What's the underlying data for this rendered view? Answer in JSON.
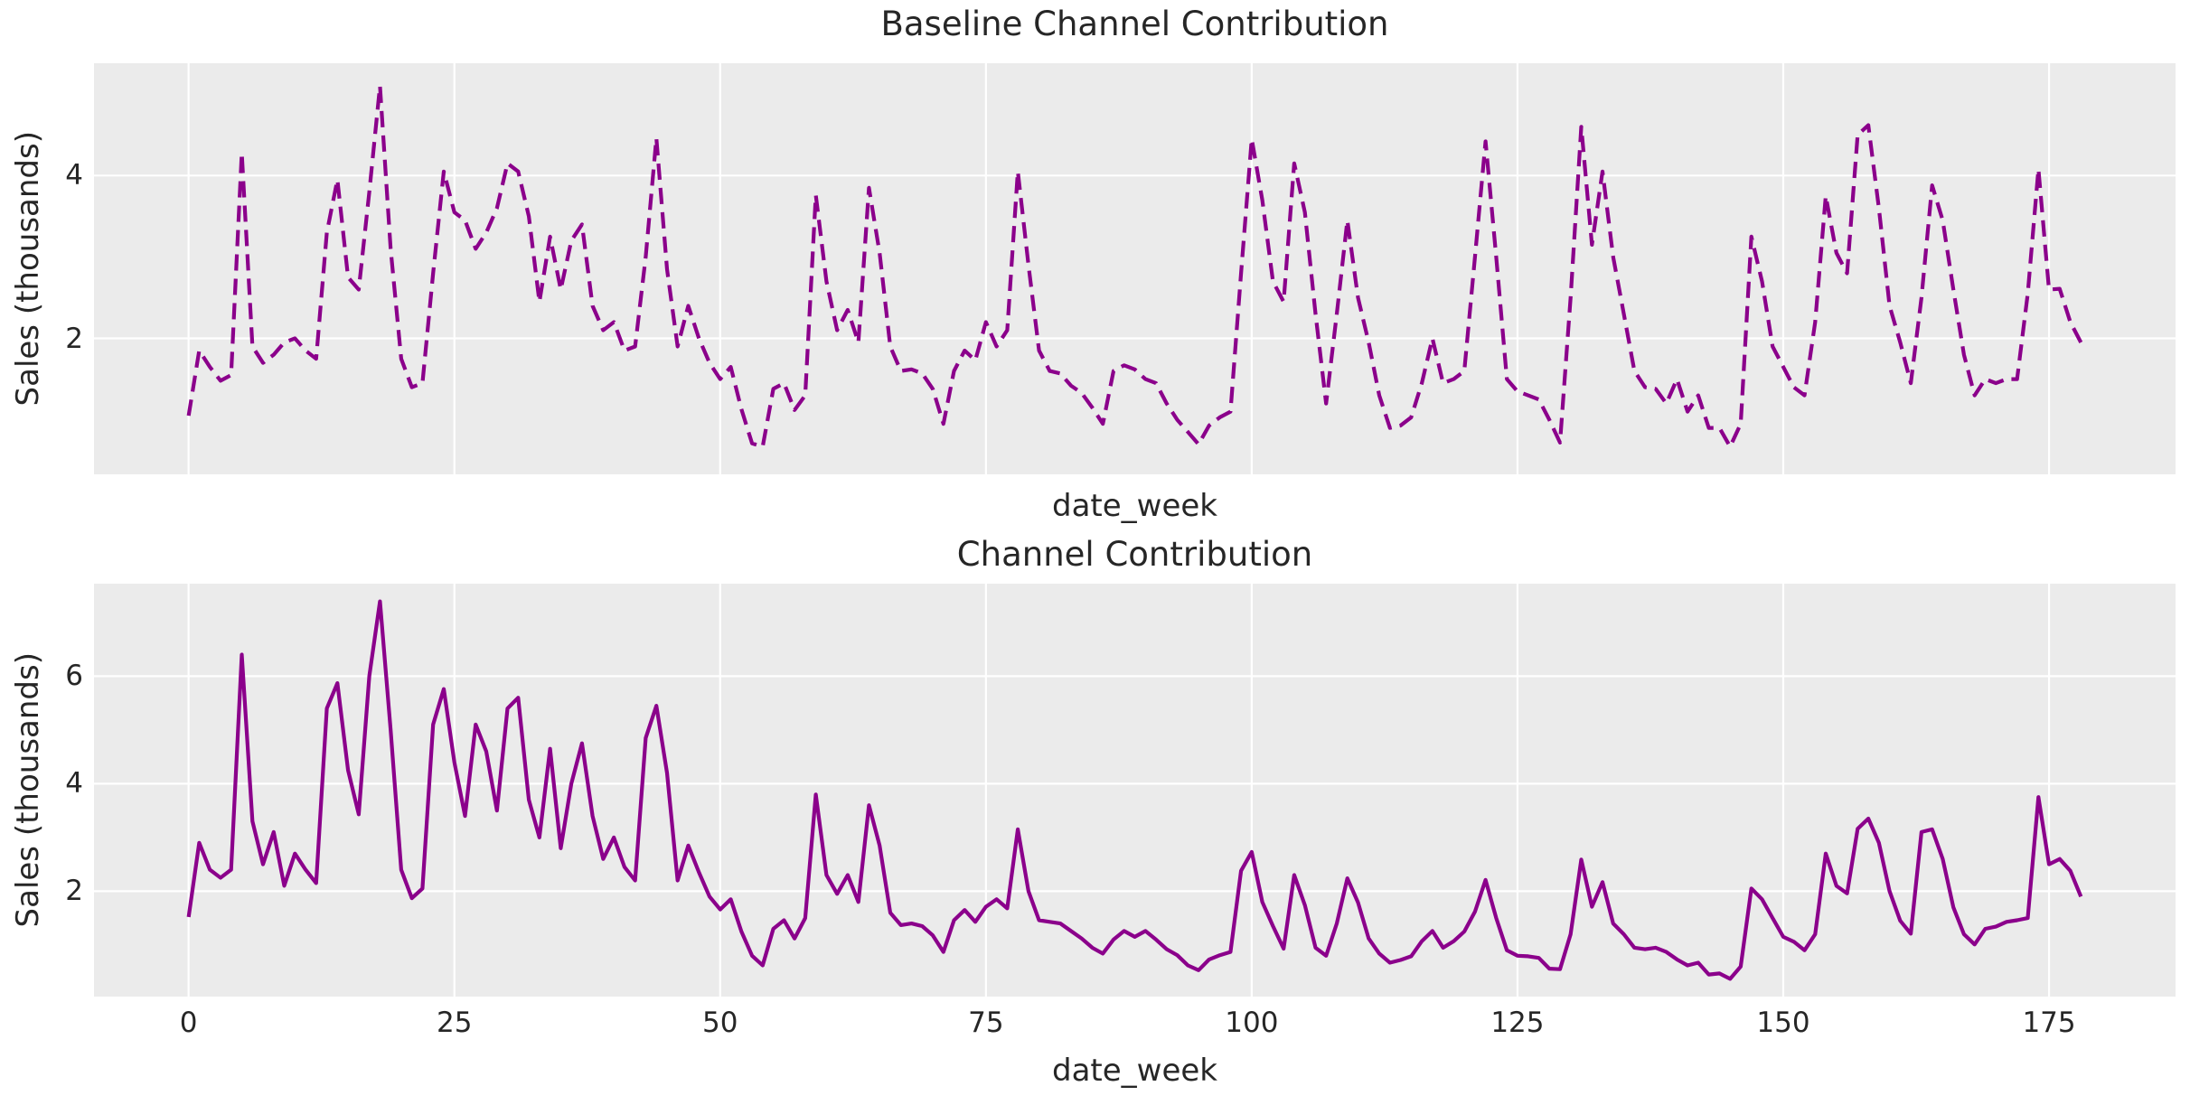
{
  "figure": {
    "background": "#ffffff",
    "plot_background": "#ebebeb",
    "grid_color": "#ffffff",
    "text_color": "#262626",
    "accent_line_color": "#8B008B"
  },
  "chart_data": [
    {
      "type": "line",
      "title": "Baseline Channel Contribution",
      "xlabel": "date_week",
      "ylabel": "Sales (thousands)",
      "line_style": "dashed",
      "color": "#8B008B",
      "x_description": "week index 0..178 (x = array index)",
      "xlim": [
        -8.9,
        186.9
      ],
      "ylim": [
        0.33,
        5.38
      ],
      "xticks": [
        0,
        25,
        50,
        75,
        100,
        125,
        150,
        175
      ],
      "xtick_labels_visible": false,
      "yticks": [
        2,
        4
      ],
      "grid": true,
      "legend": "none",
      "values": [
        1.05,
        1.85,
        1.65,
        1.48,
        1.55,
        4.28,
        1.9,
        1.7,
        1.8,
        1.95,
        2.0,
        1.85,
        1.75,
        3.3,
        3.95,
        2.75,
        2.6,
        3.8,
        5.1,
        3.1,
        1.75,
        1.4,
        1.45,
        2.8,
        4.05,
        3.55,
        3.45,
        3.1,
        3.3,
        3.6,
        4.15,
        4.05,
        3.5,
        2.45,
        3.25,
        2.6,
        3.2,
        3.4,
        2.4,
        2.1,
        2.2,
        1.85,
        1.9,
        3.0,
        4.46,
        2.85,
        1.9,
        2.4,
        2.0,
        1.7,
        1.5,
        1.65,
        1.13,
        0.71,
        0.67,
        1.38,
        1.45,
        1.12,
        1.3,
        3.76,
        2.7,
        2.1,
        2.35,
        1.95,
        3.85,
        3.05,
        1.9,
        1.6,
        1.62,
        1.57,
        1.38,
        0.95,
        1.6,
        1.85,
        1.73,
        2.2,
        1.9,
        2.1,
        4.05,
        2.9,
        1.85,
        1.6,
        1.57,
        1.42,
        1.33,
        1.15,
        0.95,
        1.6,
        1.67,
        1.62,
        1.5,
        1.45,
        1.2,
        1.0,
        0.85,
        0.7,
        0.93,
        1.03,
        1.1,
        2.8,
        4.45,
        3.7,
        2.7,
        2.45,
        4.15,
        3.55,
        2.3,
        1.2,
        2.3,
        3.45,
        2.5,
        1.95,
        1.3,
        0.9,
        0.93,
        1.03,
        1.45,
        2.0,
        1.45,
        1.5,
        1.6,
        3.0,
        4.42,
        3.0,
        1.5,
        1.35,
        1.3,
        1.25,
        1.0,
        0.72,
        2.5,
        4.6,
        3.15,
        4.05,
        3.0,
        2.3,
        1.6,
        1.4,
        1.38,
        1.2,
        1.5,
        1.1,
        1.3,
        0.9,
        0.9,
        0.67,
        0.95,
        3.25,
        2.7,
        1.9,
        1.65,
        1.4,
        1.3,
        2.2,
        3.75,
        3.05,
        2.8,
        4.5,
        4.62,
        3.6,
        2.4,
        1.95,
        1.45,
        2.5,
        3.88,
        3.45,
        2.6,
        1.8,
        1.3,
        1.5,
        1.45,
        1.5,
        1.5,
        2.55,
        4.08,
        2.6,
        2.61,
        2.2,
        1.95
      ]
    },
    {
      "type": "line",
      "title": "Channel Contribution",
      "xlabel": "date_week",
      "ylabel": "Sales (thousands)",
      "line_style": "solid",
      "color": "#8B008B",
      "x_description": "week index 0..178 (x = array index)",
      "xlim": [
        -8.9,
        186.9
      ],
      "ylim": [
        0.04,
        7.72
      ],
      "xticks": [
        0,
        25,
        50,
        75,
        100,
        125,
        150,
        175
      ],
      "xtick_labels_visible": true,
      "yticks": [
        2,
        4,
        6
      ],
      "grid": true,
      "legend": "none",
      "values": [
        1.52,
        2.9,
        2.4,
        2.25,
        2.4,
        6.4,
        3.3,
        2.5,
        3.1,
        2.1,
        2.7,
        2.4,
        2.15,
        5.4,
        5.87,
        4.25,
        3.43,
        6.0,
        7.39,
        5.0,
        2.4,
        1.87,
        2.05,
        5.1,
        5.76,
        4.4,
        3.4,
        5.1,
        4.6,
        3.5,
        5.4,
        5.6,
        3.7,
        3.0,
        4.65,
        2.8,
        4.0,
        4.75,
        3.4,
        2.6,
        3.0,
        2.45,
        2.2,
        4.85,
        5.45,
        4.2,
        2.2,
        2.85,
        2.35,
        1.9,
        1.66,
        1.85,
        1.25,
        0.8,
        0.62,
        1.3,
        1.46,
        1.12,
        1.5,
        3.8,
        2.3,
        1.95,
        2.3,
        1.8,
        3.6,
        2.85,
        1.6,
        1.37,
        1.4,
        1.35,
        1.18,
        0.87,
        1.46,
        1.65,
        1.43,
        1.71,
        1.85,
        1.68,
        3.15,
        2.0,
        1.46,
        1.43,
        1.4,
        1.26,
        1.12,
        0.95,
        0.84,
        1.1,
        1.26,
        1.15,
        1.26,
        1.1,
        0.92,
        0.81,
        0.62,
        0.53,
        0.73,
        0.81,
        0.87,
        2.38,
        2.73,
        1.8,
        1.35,
        0.93,
        2.3,
        1.74,
        0.95,
        0.8,
        1.4,
        2.24,
        1.79,
        1.12,
        0.84,
        0.67,
        0.72,
        0.79,
        1.07,
        1.26,
        0.95,
        1.07,
        1.25,
        1.62,
        2.21,
        1.5,
        0.9,
        0.8,
        0.79,
        0.76,
        0.56,
        0.55,
        1.2,
        2.59,
        1.71,
        2.17,
        1.4,
        1.2,
        0.95,
        0.92,
        0.95,
        0.87,
        0.73,
        0.62,
        0.67,
        0.45,
        0.47,
        0.37,
        0.6,
        2.05,
        1.85,
        1.5,
        1.15,
        1.06,
        0.9,
        1.2,
        2.7,
        2.1,
        1.96,
        3.16,
        3.35,
        2.9,
        2.0,
        1.45,
        1.21,
        3.1,
        3.15,
        2.6,
        1.7,
        1.2,
        1.01,
        1.3,
        1.34,
        1.43,
        1.46,
        1.5,
        3.75,
        2.5,
        2.6,
        2.38,
        1.9
      ]
    }
  ]
}
